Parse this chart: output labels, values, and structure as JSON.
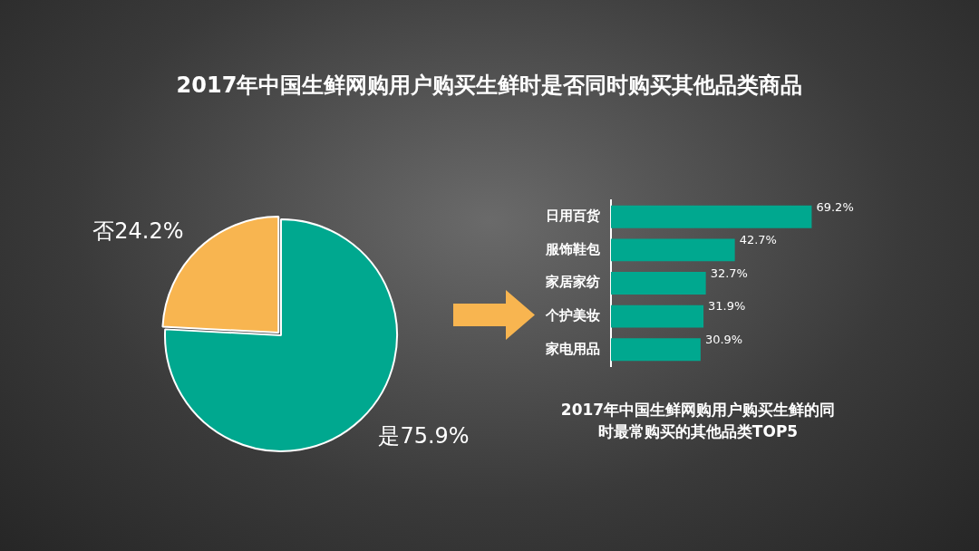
{
  "chart_data": [
    {
      "type": "pie",
      "title": "2017年中国生鲜网购用户购买生鲜时是否同时购买其他品类商品",
      "categories": [
        "是",
        "否"
      ],
      "values": [
        75.9,
        24.2
      ],
      "value_labels": [
        "75.9%",
        "24.2%"
      ],
      "colors": [
        "#00a88f",
        "#f8b550"
      ]
    },
    {
      "type": "bar",
      "orientation": "horizontal",
      "title": "2017年中国生鲜网购用户购买生鲜的同时最常购买的其他品类TOP5",
      "categories": [
        "日用百货",
        "服饰鞋包",
        "家居家纺",
        "个护美妆",
        "家电用品"
      ],
      "values": [
        69.2,
        42.7,
        32.7,
        31.9,
        30.9
      ],
      "value_labels": [
        "69.2%",
        "42.7%",
        "32.7%",
        "31.9%",
        "30.9%"
      ],
      "color": "#00a88f",
      "tick_labels": "y",
      "grid": false
    }
  ]
}
